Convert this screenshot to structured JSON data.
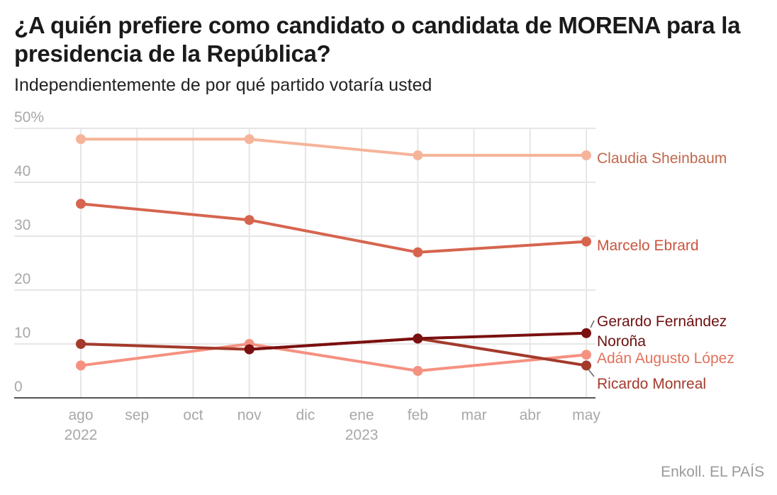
{
  "title": "¿A quién prefiere como candidato o candidata de MORENA para la presidencia de la República?",
  "subtitle": "Independientemente de por qué partido votaría usted",
  "source": "Enkoll. EL PAÍS",
  "chart_data": {
    "type": "line",
    "x_axis": {
      "categories": [
        "ago",
        "sep",
        "oct",
        "nov",
        "dic",
        "ene",
        "feb",
        "mar",
        "abr",
        "may"
      ],
      "year_labels": [
        {
          "category": "ago",
          "label": "2022"
        },
        {
          "category": "ene",
          "label": "2023"
        }
      ]
    },
    "y_axis": {
      "ylim": [
        0,
        50
      ],
      "ticks": [
        {
          "value": 0,
          "label": "0"
        },
        {
          "value": 10,
          "label": "10"
        },
        {
          "value": 20,
          "label": "20"
        },
        {
          "value": 30,
          "label": "30"
        },
        {
          "value": 40,
          "label": "40"
        },
        {
          "value": 50,
          "label": "50%"
        }
      ]
    },
    "grid": true,
    "legend": "direct labels at line ends",
    "series": [
      {
        "name": "Claudia Sheinbaum",
        "color": "#f5b49a",
        "label_color": "#c0674d",
        "points": [
          {
            "x": "ago",
            "y": 48
          },
          {
            "x": "nov",
            "y": 48
          },
          {
            "x": "feb",
            "y": 45
          },
          {
            "x": "may",
            "y": 45
          }
        ]
      },
      {
        "name": "Marcelo Ebrard",
        "color": "#d6654f",
        "label_color": "#c9553f",
        "points": [
          {
            "x": "ago",
            "y": 36
          },
          {
            "x": "nov",
            "y": 33
          },
          {
            "x": "feb",
            "y": 27
          },
          {
            "x": "may",
            "y": 29
          }
        ]
      },
      {
        "name": "Adán Augusto López",
        "color": "#f59180",
        "label_color": "#e2705c",
        "points": [
          {
            "x": "ago",
            "y": 6
          },
          {
            "x": "nov",
            "y": 10
          },
          {
            "x": "feb",
            "y": 5
          },
          {
            "x": "may",
            "y": 8
          }
        ]
      },
      {
        "name": "Ricardo Monreal",
        "color": "#a33a2b",
        "label_color": "#a33a2b",
        "points": [
          {
            "x": "ago",
            "y": 10
          },
          {
            "x": "nov",
            "y": 9
          },
          {
            "x": "feb",
            "y": 11
          },
          {
            "x": "may",
            "y": 6
          }
        ]
      },
      {
        "name": "Gerardo Fernández Noroña",
        "color": "#7a1010",
        "label_color": "#6e0f0f",
        "points": [
          {
            "x": "nov",
            "y": 9
          },
          {
            "x": "feb",
            "y": 11
          },
          {
            "x": "may",
            "y": 12
          }
        ]
      }
    ]
  }
}
